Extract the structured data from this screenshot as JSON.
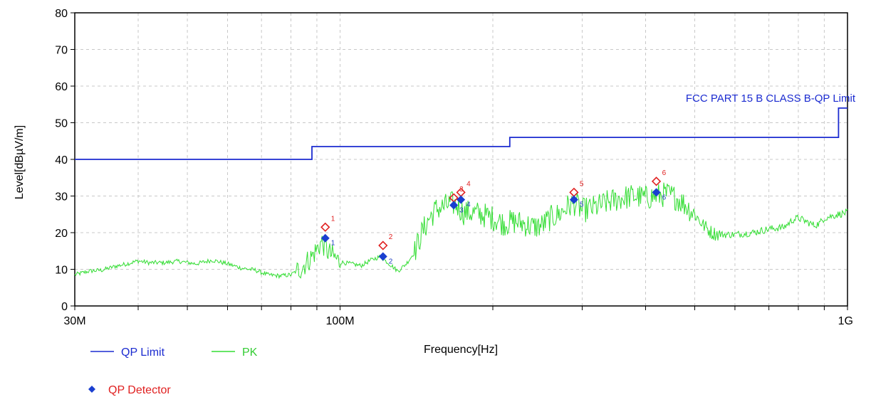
{
  "chart_data": {
    "type": "line",
    "xscale": "log",
    "xlim": [
      30,
      1000
    ],
    "ylim": [
      0,
      80
    ],
    "grid": true,
    "xlabel": "Frequency[Hz]",
    "ylabel": "Level[dBµV/m]",
    "y_ticks": [
      "0",
      "10",
      "20",
      "30",
      "40",
      "50",
      "60",
      "70",
      "80"
    ],
    "x_tick_labels": [
      {
        "value": 30,
        "label": "30M"
      },
      {
        "value": 100,
        "label": "100M"
      },
      {
        "value": 1000,
        "label": "1G"
      }
    ],
    "x_minor_ticks": [
      40,
      50,
      60,
      70,
      80,
      90,
      200,
      300,
      400,
      500,
      600,
      700,
      800,
      900
    ],
    "limit_annotation": "FCC PART 15 B CLASS B-QP Limit",
    "colors": {
      "limit": "#1b2bd0",
      "pk": "#33dd33",
      "peak_marker": "#e02020",
      "qp_marker": "#1a3fd0",
      "grid": "#c8c8c8"
    },
    "legend": {
      "qp_limit": "QP Limit",
      "pk": "PK",
      "qp_detector": "QP Detector"
    },
    "series": [
      {
        "name": "QP Limit",
        "kind": "step",
        "points": [
          [
            30,
            40
          ],
          [
            88,
            40
          ],
          [
            88,
            43.5
          ],
          [
            216,
            43.5
          ],
          [
            216,
            46
          ],
          [
            960,
            46
          ],
          [
            960,
            54
          ],
          [
            1000,
            54
          ]
        ]
      },
      {
        "name": "PK",
        "kind": "noisy-line",
        "points": [
          [
            30,
            8.5
          ],
          [
            32,
            9.5
          ],
          [
            34,
            9.8
          ],
          [
            36,
            10.8
          ],
          [
            38,
            11.5
          ],
          [
            40,
            12.3
          ],
          [
            42,
            11.8
          ],
          [
            45,
            11.8
          ],
          [
            48,
            12.2
          ],
          [
            52,
            11.5
          ],
          [
            56,
            12.5
          ],
          [
            60,
            11.5
          ],
          [
            64,
            10.3
          ],
          [
            68,
            9.8
          ],
          [
            72,
            8.5
          ],
          [
            76,
            8.2
          ],
          [
            80,
            8.5
          ],
          [
            84,
            10.5
          ],
          [
            88,
            13.5
          ],
          [
            92,
            17.5
          ],
          [
            95,
            14.5
          ],
          [
            100,
            12.0
          ],
          [
            105,
            11.5
          ],
          [
            110,
            11.0
          ],
          [
            115,
            12.5
          ],
          [
            120,
            13.5
          ],
          [
            125,
            11.5
          ],
          [
            130,
            9.5
          ],
          [
            135,
            11.5
          ],
          [
            140,
            14.5
          ],
          [
            145,
            20.0
          ],
          [
            150,
            24.0
          ],
          [
            155,
            26.5
          ],
          [
            160,
            27.0
          ],
          [
            165,
            28.0
          ],
          [
            170,
            27.5
          ],
          [
            175,
            25.5
          ],
          [
            180,
            25.5
          ],
          [
            190,
            25.0
          ],
          [
            200,
            24.0
          ],
          [
            210,
            22.5
          ],
          [
            220,
            23.0
          ],
          [
            230,
            22.5
          ],
          [
            240,
            21.5
          ],
          [
            250,
            22.0
          ],
          [
            260,
            24.0
          ],
          [
            270,
            25.0
          ],
          [
            280,
            27.0
          ],
          [
            290,
            28.0
          ],
          [
            300,
            26.0
          ],
          [
            320,
            27.0
          ],
          [
            340,
            28.5
          ],
          [
            360,
            29.5
          ],
          [
            380,
            30.0
          ],
          [
            400,
            29.5
          ],
          [
            420,
            30.0
          ],
          [
            440,
            30.5
          ],
          [
            460,
            29.5
          ],
          [
            480,
            27.5
          ],
          [
            500,
            25.0
          ],
          [
            520,
            22.0
          ],
          [
            540,
            20.0
          ],
          [
            560,
            19.5
          ],
          [
            600,
            19.5
          ],
          [
            650,
            20.0
          ],
          [
            700,
            21.0
          ],
          [
            750,
            21.5
          ],
          [
            780,
            23.5
          ],
          [
            800,
            24.0
          ],
          [
            830,
            23.0
          ],
          [
            860,
            22.0
          ],
          [
            880,
            22.5
          ],
          [
            900,
            24.0
          ],
          [
            930,
            24.5
          ],
          [
            960,
            25.0
          ],
          [
            1000,
            25.5
          ]
        ]
      }
    ],
    "markers": [
      {
        "id": "1",
        "freq": 93.5,
        "peak": 21.5,
        "qp": 18.5
      },
      {
        "id": "2",
        "freq": 121.5,
        "peak": 16.5,
        "qp": 13.5
      },
      {
        "id": "3",
        "freq": 167.5,
        "peak": 29.5,
        "qp": 27.5
      },
      {
        "id": "4",
        "freq": 173.0,
        "peak": 31.0,
        "qp": 29.0
      },
      {
        "id": "5",
        "freq": 289.0,
        "peak": 31.0,
        "qp": 29.0
      },
      {
        "id": "6",
        "freq": 420.0,
        "peak": 34.0,
        "qp": 31.0
      }
    ]
  }
}
